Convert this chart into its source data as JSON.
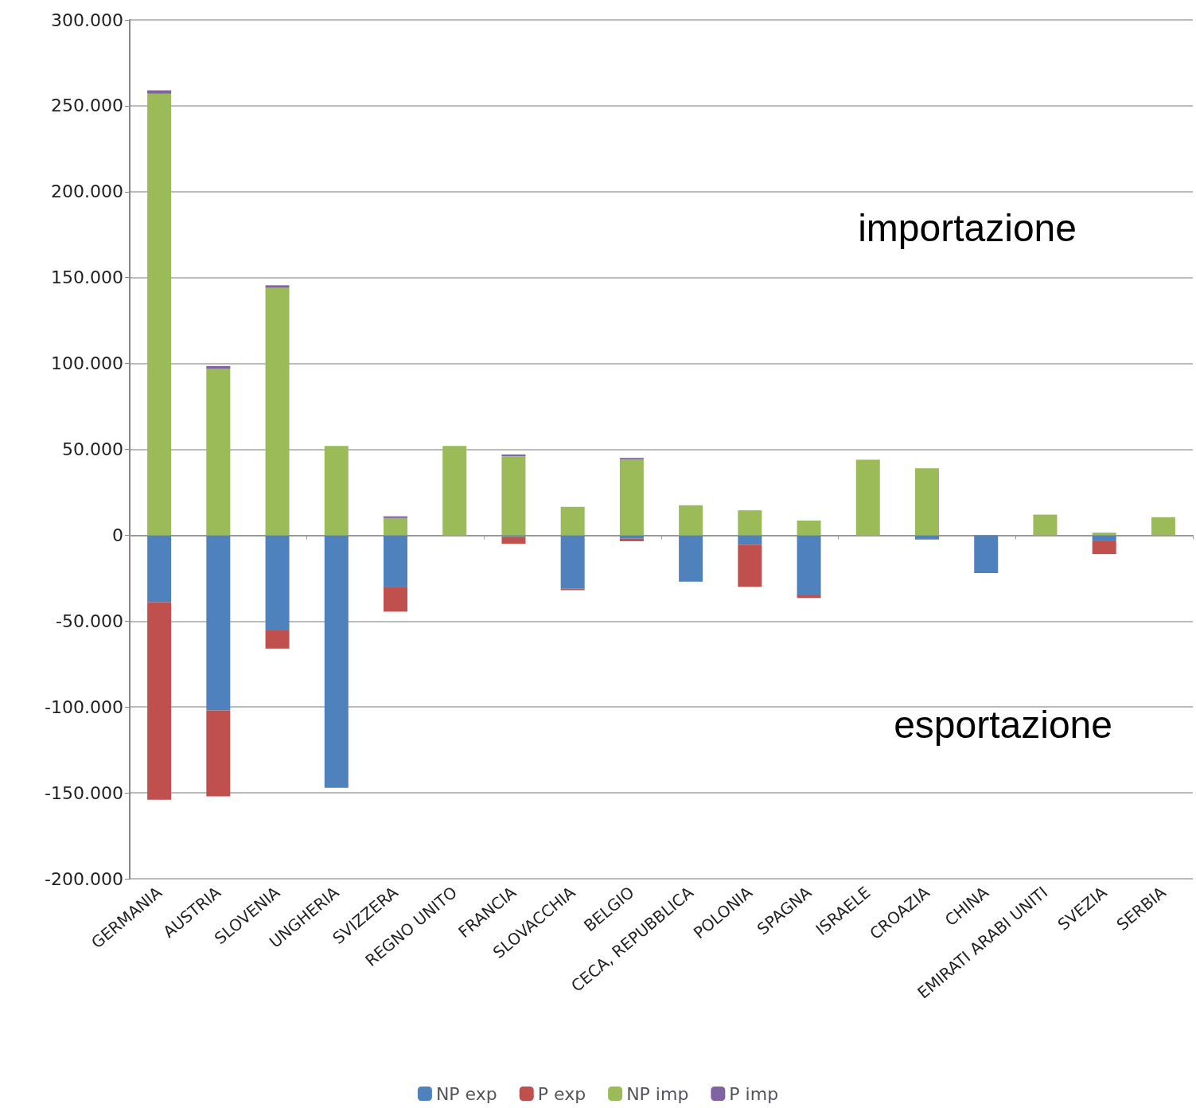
{
  "chart_data": {
    "type": "bar",
    "stacked": true,
    "categories": [
      "GERMANIA",
      "AUSTRIA",
      "SLOVENIA",
      "UNGHERIA",
      "SVIZZERA",
      "REGNO UNITO",
      "FRANCIA",
      "SLOVACCHIA",
      "BELGIO",
      "CECA, REPUBBLICA",
      "POLONIA",
      "SPAGNA",
      "ISRAELE",
      "CROAZIA",
      "CHINA",
      "EMIRATI ARABI UNITI",
      "SVEZIA",
      "SERBIA"
    ],
    "series": [
      {
        "name": "NP exp",
        "color": "#4f81bd",
        "values": [
          -39000,
          -102000,
          -55000,
          -147000,
          -30000,
          null,
          -1000,
          -31000,
          -2000,
          -27000,
          -5500,
          -35000,
          null,
          -2500,
          -22000,
          null,
          -3500,
          null
        ]
      },
      {
        "name": "P exp",
        "color": "#c0504d",
        "values": [
          -115000,
          -50000,
          -11000,
          null,
          -14500,
          null,
          -4000,
          -1000,
          -1500,
          null,
          -24500,
          -1500,
          null,
          null,
          null,
          null,
          -7500,
          null
        ]
      },
      {
        "name": "NP imp",
        "color": "#9bbb59",
        "values": [
          257000,
          97000,
          144000,
          52000,
          10000,
          52000,
          46000,
          16500,
          44000,
          17500,
          14500,
          8500,
          44000,
          39000,
          null,
          12000,
          1500,
          10500
        ]
      },
      {
        "name": "P imp",
        "color": "#8064a2",
        "values": [
          2000,
          1500,
          1500,
          null,
          1000,
          null,
          1000,
          null,
          1000,
          null,
          null,
          null,
          null,
          null,
          null,
          null,
          null,
          null
        ]
      }
    ],
    "ylim": [
      -200000,
      300000
    ],
    "yticks": [
      {
        "value": -200000,
        "label": "-200.000"
      },
      {
        "value": -150000,
        "label": "-150.000"
      },
      {
        "value": -100000,
        "label": "-100.000"
      },
      {
        "value": -50000,
        "label": "-50.000"
      },
      0,
      {
        "value": 50000,
        "label": "50.000"
      },
      {
        "value": 100000,
        "label": "100.000"
      },
      {
        "value": 150000,
        "label": "150.000"
      },
      {
        "value": 200000,
        "label": "200.000"
      },
      {
        "value": 250000,
        "label": "250.000"
      },
      {
        "value": 300000,
        "label": "300.000"
      }
    ],
    "grid": "y",
    "legend": "bottom",
    "annotations": [
      "importazione",
      "esportazione"
    ]
  }
}
